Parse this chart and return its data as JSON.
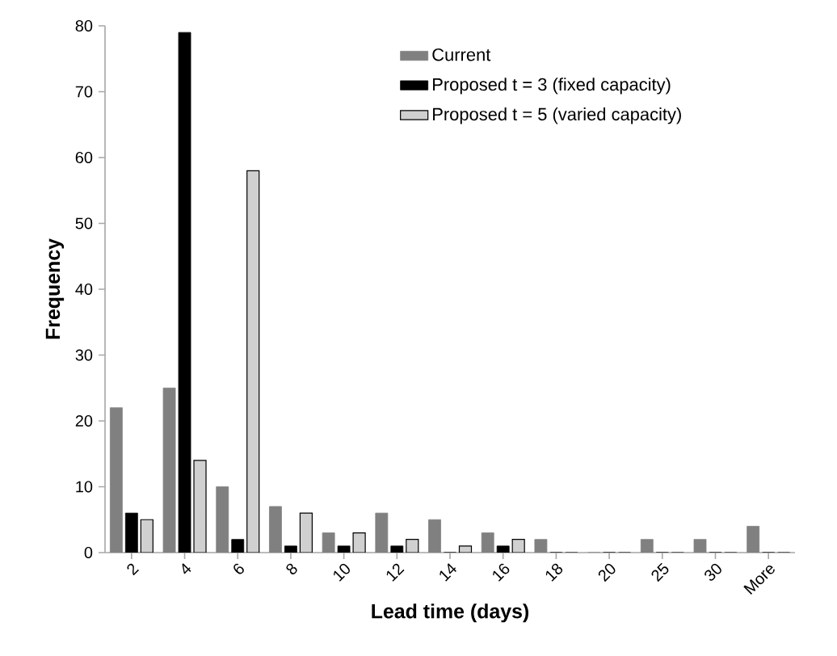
{
  "chart_data": {
    "type": "bar",
    "xlabel": "Lead time (days)",
    "ylabel": "Frequency",
    "categories": [
      "2",
      "4",
      "6",
      "8",
      "10",
      "12",
      "14",
      "16",
      "18",
      "20",
      "25",
      "30",
      "More"
    ],
    "series": [
      {
        "name": "Current",
        "color": "#808080",
        "values": [
          22,
          25,
          10,
          7,
          3,
          6,
          5,
          3,
          2,
          0,
          2,
          2,
          4
        ]
      },
      {
        "name": "Proposed t = 3 (fixed capacity)",
        "color": "#000000",
        "values": [
          6,
          79,
          2,
          1,
          1,
          1,
          0,
          1,
          0,
          0,
          0,
          0,
          0
        ]
      },
      {
        "name": "Proposed t = 5 (varied capacity)",
        "color": "#d0d0d0",
        "values": [
          5,
          14,
          58,
          6,
          3,
          2,
          1,
          2,
          0,
          0,
          0,
          0,
          0
        ]
      }
    ],
    "ylim": [
      0,
      80
    ],
    "yticks": [
      0,
      10,
      20,
      30,
      40,
      50,
      60,
      70,
      80
    ],
    "grid": false,
    "legend": "top right"
  }
}
